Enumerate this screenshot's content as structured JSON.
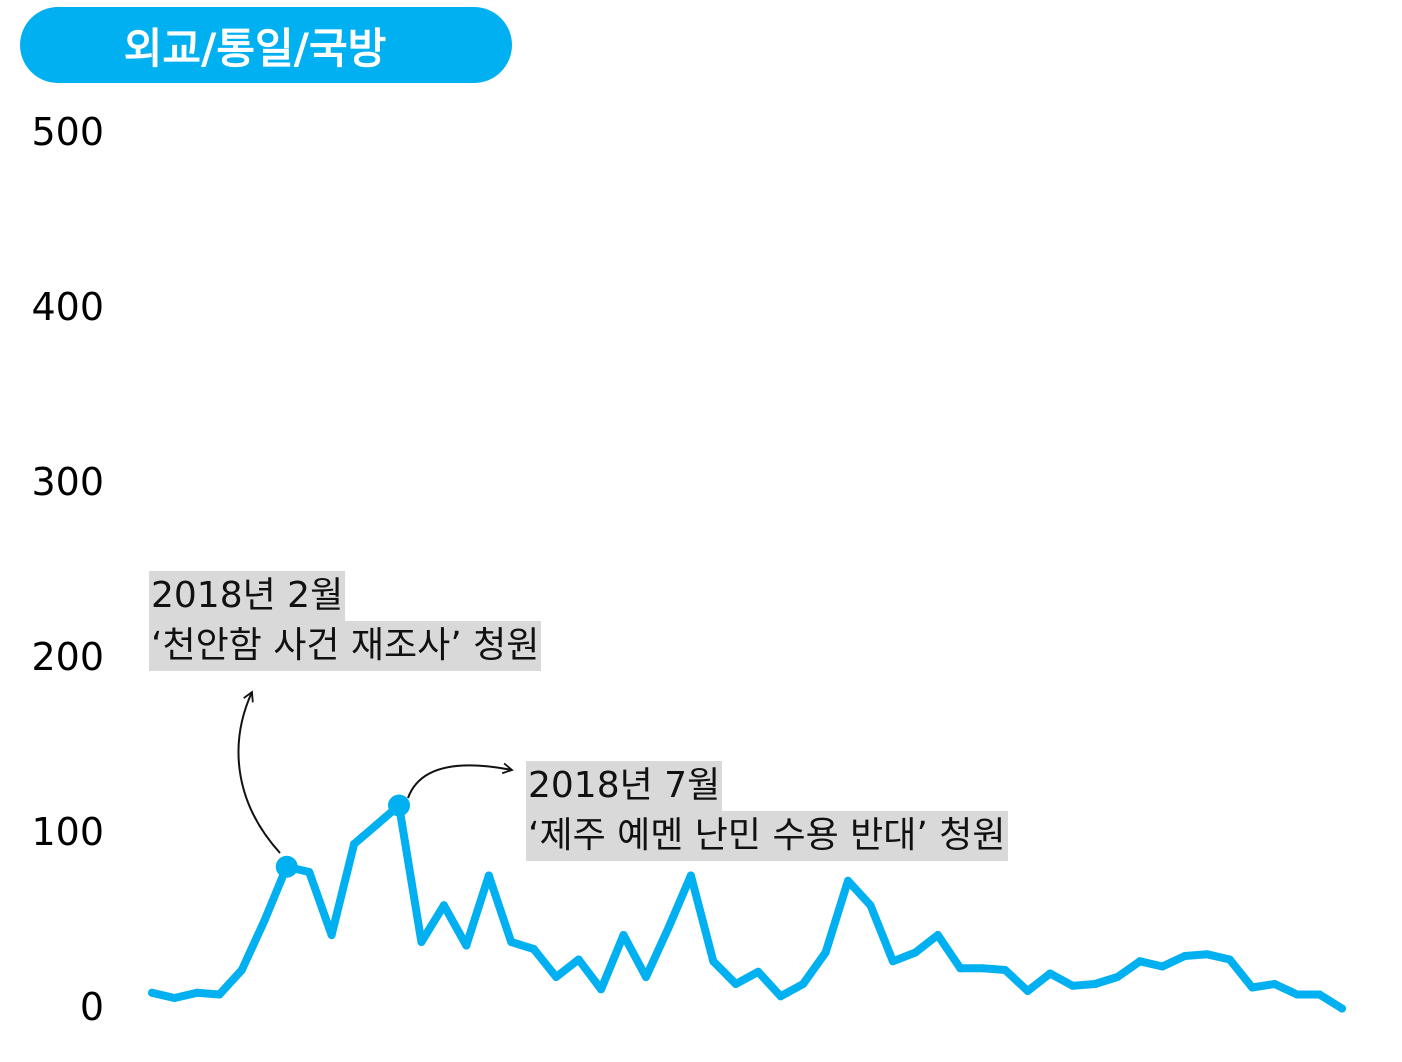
{
  "header": {
    "title": "외교/통일/국방"
  },
  "colors": {
    "accent": "#00b0f0",
    "annotation_bg": "#d9d9d9"
  },
  "chart_data": {
    "type": "line",
    "title": "외교/통일/국방",
    "xlabel": "",
    "ylabel": "",
    "ylim": [
      0,
      500
    ],
    "yticks": [
      "500",
      "400",
      "300",
      "200",
      "100",
      "0"
    ],
    "ytick_values": [
      500,
      400,
      300,
      200,
      100,
      0
    ],
    "grid": false,
    "series": [
      {
        "name": "외교/통일/국방",
        "values": [
          7,
          4,
          7,
          6,
          20,
          48,
          79,
          76,
          40,
          92,
          103,
          114,
          36,
          57,
          34,
          74,
          36,
          32,
          16,
          26,
          9,
          40,
          16,
          44,
          74,
          25,
          12,
          19,
          5,
          12,
          30,
          71,
          57,
          25,
          30,
          40,
          21,
          21,
          20,
          8,
          18,
          11,
          12,
          16,
          25,
          22,
          28,
          29,
          26,
          10,
          12,
          6,
          6,
          -2
        ]
      }
    ],
    "highlights": [
      {
        "index": 6,
        "label_line1": "2018년 2월",
        "label_line2": "‘천안함 사건 재조사’ 청원"
      },
      {
        "index": 11,
        "label_line1": "2018년 7월",
        "label_line2": "‘제주 예멘 난민 수용 반대’ 청원"
      }
    ]
  }
}
